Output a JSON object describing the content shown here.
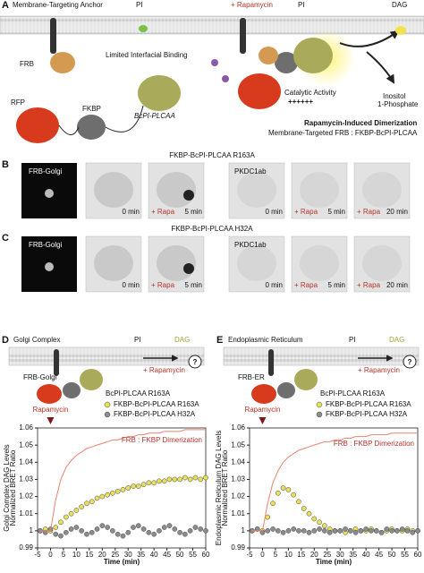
{
  "panel_a": {
    "letter": "A",
    "anchor": "Membrane-Targeting Anchor",
    "pi_left": "PI",
    "rapamycin": "+ Rapamycin",
    "pi_right": "PI",
    "dag": "DAG",
    "frb": "FRB",
    "limited": "Limited Interfacial Binding",
    "rfp": "RFP",
    "fkbp": "FKBP",
    "plc": "BcPI-PLCAA",
    "catalytic": "Catalytic Activity",
    "plus": "++++++",
    "inositol": "Inositol",
    "phosphate": "1-Phosphate",
    "dimerization": "Rapamycin-Induced Dimerization",
    "construct": "Membrane-Targeted FRB : FKBP-BcPI-PLCAA"
  },
  "panel_b": {
    "letter": "B",
    "title": "FKBP-BcPI-PLCAA R163A",
    "frb": "FRB-Golgi",
    "pkd": "PKDC1ab",
    "t0": "0 min",
    "rapa": "+ Rapa",
    "t5": "5 min",
    "t20": "20 min"
  },
  "panel_c": {
    "letter": "C",
    "title": "FKBP-BcPI-PLCAA H32A",
    "frb": "FRB-Golgi",
    "pkd": "PKDC1ab",
    "t0": "0 min",
    "rapa": "+ Rapa",
    "t5": "5 min",
    "t20": "20 min"
  },
  "panel_d": {
    "letter": "D",
    "title": "Golgi Complex",
    "pi": "PI",
    "dag": "DAG",
    "frb": "FRB-Golgi",
    "rapamycin": "+ Rapamycin",
    "q": "?",
    "plc": "BcPI-PLCAA R163A"
  },
  "panel_e": {
    "letter": "E",
    "title": "Endoplasmic Reticulum",
    "pi": "PI",
    "dag": "DAG",
    "frb": "FRB-ER",
    "rapamycin": "+ Rapamycin",
    "q": "?",
    "plc": "BcPI-PLCAA R163A"
  },
  "chart_data": [
    {
      "type": "line",
      "ylabel": "Golgi Complex DAG Levels",
      "ylabel2": "Normalized BRET Ratio",
      "xlabel": "Time (min)",
      "annotations": [
        {
          "text": "Rapamycin",
          "x": 0
        }
      ],
      "x": [
        -4,
        -2,
        0,
        2,
        4,
        6,
        8,
        10,
        12,
        14,
        16,
        18,
        20,
        22,
        24,
        26,
        28,
        30,
        32,
        34,
        36,
        38,
        40,
        42,
        44,
        46,
        48,
        50,
        52,
        54,
        56,
        58,
        60
      ],
      "series": [
        {
          "name": "FKBP-BcPI-PLCAA R163A",
          "color": "#e8e05a",
          "style": "markers",
          "values": [
            1.0,
            1.001,
            1.0,
            1.002,
            1.005,
            1.008,
            1.01,
            1.012,
            1.014,
            1.016,
            1.017,
            1.019,
            1.02,
            1.021,
            1.022,
            1.023,
            1.024,
            1.025,
            1.026,
            1.026,
            1.027,
            1.028,
            1.028,
            1.029,
            1.029,
            1.03,
            1.03,
            1.03,
            1.031,
            1.03,
            1.031,
            1.03,
            1.031
          ]
        },
        {
          "name": "FKBP-BcPI-PLCAA H32A",
          "color": "#8c8c8c",
          "style": "markers",
          "values": [
            1.0,
            0.999,
            1.001,
            0.998,
            0.997,
            0.999,
            1.001,
            1.002,
            1.0,
            0.998,
            0.999,
            1.001,
            1.003,
            1.002,
            1.0,
            0.998,
            0.997,
            0.999,
            1.002,
            1.003,
            1.001,
            0.999,
            0.998,
            1.0,
            1.002,
            1.003,
            1.001,
            0.999,
            0.998,
            1.0,
            1.002,
            1.001,
            1.0
          ]
        },
        {
          "name": "FRB : FKBP Dimerization",
          "color": "#e9836f",
          "style": "line",
          "values": [
            1.0,
            1.0,
            1.0,
            1.018,
            1.03,
            1.037,
            1.041,
            1.044,
            1.046,
            1.048,
            1.049,
            1.05,
            1.051,
            1.052,
            1.053,
            1.053,
            1.054,
            1.055,
            1.055,
            1.056,
            1.056,
            1.057,
            1.057,
            1.057,
            1.058,
            1.058,
            1.058,
            1.058,
            1.059,
            1.059,
            1.059,
            1.059,
            1.059
          ]
        }
      ],
      "xlim": [
        -5,
        60
      ],
      "xticks": [
        -5,
        0,
        5,
        10,
        15,
        20,
        25,
        30,
        35,
        40,
        45,
        50,
        55,
        60
      ],
      "ylim": [
        0.99,
        1.06
      ],
      "yticks": [
        0.99,
        1,
        1.01,
        1.02,
        1.03,
        1.04,
        1.05,
        1.06
      ]
    },
    {
      "type": "line",
      "ylabel": "Endoplasmic Reticulum DAG Levels",
      "ylabel2": "Normalized BRET Ratio",
      "xlabel": "Time (min)",
      "annotations": [
        {
          "text": "Rapamycin",
          "x": 0
        }
      ],
      "x": [
        -4,
        -2,
        0,
        2,
        4,
        6,
        8,
        10,
        12,
        14,
        16,
        18,
        20,
        22,
        24,
        26,
        28,
        30,
        32,
        34,
        36,
        38,
        40,
        42,
        44,
        46,
        48,
        50,
        52,
        54,
        56,
        58,
        60
      ],
      "series": [
        {
          "name": "FKBP-BcPI-PLCAA R163A",
          "color": "#e8e05a",
          "style": "markers",
          "values": [
            1.0,
            1.001,
            1.0,
            1.008,
            1.016,
            1.022,
            1.025,
            1.024,
            1.021,
            1.017,
            1.013,
            1.01,
            1.007,
            1.005,
            1.003,
            1.001,
            1.0,
            1.0,
            0.999,
            1.0,
            1.001,
            1.0,
            1.0,
            1.001,
            1.0,
            0.999,
            1.0,
            1.001,
            1.0,
            1.0,
            1.001,
            1.0,
            1.0
          ]
        },
        {
          "name": "FKBP-BcPI-PLCAA H32A",
          "color": "#8c8c8c",
          "style": "markers",
          "values": [
            1.0,
            1.001,
            0.999,
            1.0,
            1.001,
            1.0,
            0.999,
            1.0,
            1.001,
            1.0,
            1.0,
            0.999,
            1.0,
            1.001,
            1.0,
            0.999,
            1.0,
            1.0,
            1.001,
            1.0,
            0.999,
            1.0,
            1.001,
            1.0,
            1.0,
            0.999,
            1.001,
            1.0,
            1.0,
            1.001,
            1.0,
            0.999,
            1.0
          ]
        },
        {
          "name": "FRB : FKBP Dimerization",
          "color": "#e9836f",
          "style": "line",
          "values": [
            1.0,
            1.0,
            1.0,
            1.016,
            1.028,
            1.035,
            1.04,
            1.043,
            1.045,
            1.047,
            1.048,
            1.049,
            1.05,
            1.051,
            1.052,
            1.052,
            1.053,
            1.053,
            1.054,
            1.054,
            1.055,
            1.055,
            1.055,
            1.056,
            1.056,
            1.056,
            1.056,
            1.057,
            1.057,
            1.057,
            1.057,
            1.057,
            1.057
          ]
        }
      ],
      "xlim": [
        -5,
        60
      ],
      "xticks": [
        -5,
        0,
        5,
        10,
        15,
        20,
        25,
        30,
        35,
        40,
        45,
        50,
        55,
        60
      ],
      "ylim": [
        0.99,
        1.06
      ],
      "yticks": [
        0.99,
        1,
        1.01,
        1.02,
        1.03,
        1.04,
        1.05,
        1.06
      ]
    }
  ]
}
